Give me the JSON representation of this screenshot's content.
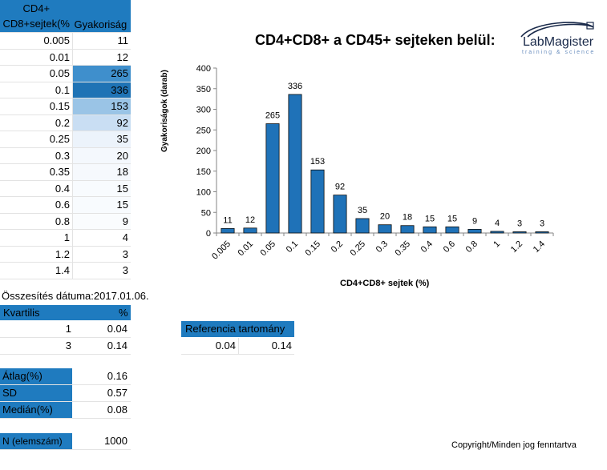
{
  "freq_table": {
    "header_col1_line1": "CD4+",
    "header_col1_line2": "CD8+sejtek(%",
    "header_col2": "Gyakoriság",
    "rows": [
      {
        "k": "0.005",
        "v": "11",
        "shade": "#ffffff"
      },
      {
        "k": "0.01",
        "v": "12",
        "shade": "#ffffff"
      },
      {
        "k": "0.05",
        "v": "265",
        "shade": "#3f8fcc"
      },
      {
        "k": "0.1",
        "v": "336",
        "shade": "#1f73b5"
      },
      {
        "k": "0.15",
        "v": "153",
        "shade": "#9ac4e6"
      },
      {
        "k": "0.2",
        "v": "92",
        "shade": "#c9def3"
      },
      {
        "k": "0.25",
        "v": "35",
        "shade": "#ecf3fb"
      },
      {
        "k": "0.3",
        "v": "20",
        "shade": "#f4f8fd"
      },
      {
        "k": "0.35",
        "v": "18",
        "shade": "#f6f9fd"
      },
      {
        "k": "0.4",
        "v": "15",
        "shade": "#f8fbfe"
      },
      {
        "k": "0.6",
        "v": "15",
        "shade": "#f8fbfe"
      },
      {
        "k": "0.8",
        "v": "9",
        "shade": "#fafcfe"
      },
      {
        "k": "1",
        "v": "4",
        "shade": "#ffffff"
      },
      {
        "k": "1.2",
        "v": "3",
        "shade": "#ffffff"
      },
      {
        "k": "1.4",
        "v": "3",
        "shade": "#ffffff"
      }
    ]
  },
  "summary_date_label": "Összesítés dátuma:",
  "summary_date": "2017.01.06.",
  "quartile": {
    "header_label": "Kvartilis",
    "header_unit": "%",
    "rows": [
      {
        "q": "1",
        "val": "0.04"
      },
      {
        "q": "3",
        "val": "0.14"
      }
    ]
  },
  "stats": {
    "mean_label": "Átlag(%)",
    "mean": "0.16",
    "sd_label": "SD",
    "sd": "0.57",
    "median_label": "Medián(%)",
    "median": "0.08",
    "n_label": "N (elemszám)",
    "n": "1000"
  },
  "reference": {
    "header": "Referencia tartomány",
    "low": "0.04",
    "high": "0.14"
  },
  "logo": {
    "name": "LabMagister",
    "tagline": "training & science"
  },
  "copyright": "Copyright/Minden jog fenntartva",
  "colors": {
    "accent": "#1f7bbf",
    "bar": "#1f72b8"
  },
  "chart_data": {
    "type": "bar",
    "title": "CD4+CD8+ a CD45+ sejteken belül:",
    "xlabel": "CD4+CD8+ sejtek (%)",
    "ylabel": "Gyakoriságok (darab)",
    "categories": [
      "0.005",
      "0.01",
      "0.05",
      "0.1",
      "0.15",
      "0.2",
      "0.25",
      "0.3",
      "0.35",
      "0.4",
      "0.6",
      "0.8",
      "1",
      "1.2",
      "1.4"
    ],
    "values": [
      11,
      12,
      265,
      336,
      153,
      92,
      35,
      20,
      18,
      15,
      15,
      9,
      4,
      3,
      3
    ],
    "ylim": [
      0,
      400
    ],
    "yticks": [
      0,
      50,
      100,
      150,
      200,
      250,
      300,
      350,
      400
    ],
    "grid": false,
    "legend": "none"
  }
}
